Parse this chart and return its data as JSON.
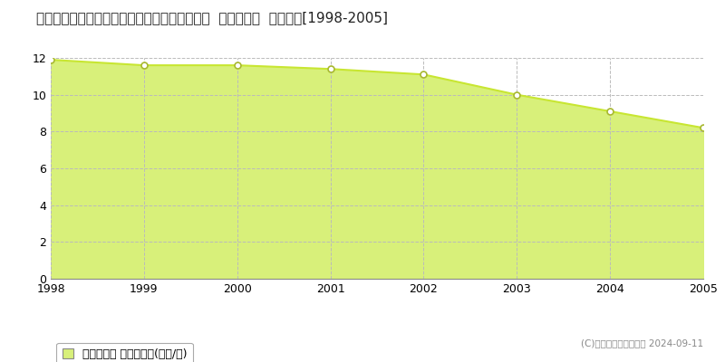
{
  "title": "福岡県大川市大字幡保字若松７０番１ほか３筆  基準地価格  地価推移[1998-2005]",
  "years": [
    1998,
    1999,
    2000,
    2001,
    2002,
    2003,
    2004,
    2005
  ],
  "values": [
    11.9,
    11.6,
    11.6,
    11.4,
    11.1,
    10.0,
    9.1,
    8.2
  ],
  "ylim": [
    0,
    12
  ],
  "yticks": [
    0,
    2,
    4,
    6,
    8,
    10,
    12
  ],
  "line_color": "#c8e632",
  "fill_color": "#d8f07a",
  "marker_color": "#ffffff",
  "marker_edge_color": "#a8b830",
  "bg_color": "#ffffff",
  "plot_bg_color": "#ffffff",
  "grid_color": "#bbbbbb",
  "title_fontsize": 11,
  "legend_label": "基準地価格 平均坪単価(万円/坪)",
  "copyright_text": "(C)土地価格ドットコム 2024-09-11",
  "tick_fontsize": 9
}
